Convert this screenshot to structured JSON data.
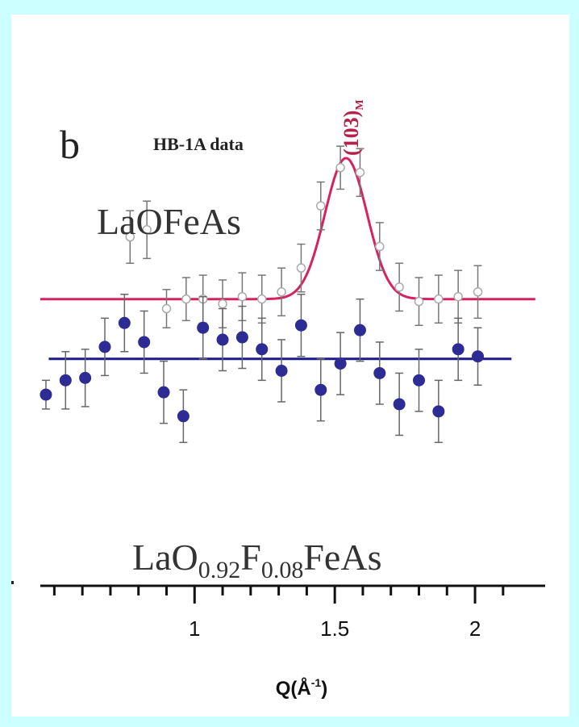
{
  "chart_data": {
    "type": "scatter",
    "panel_label": "b",
    "dataset_label": "HB-1A data",
    "peak_label": "(103)",
    "peak_label_subscript": "M",
    "xlabel": "Q(Å",
    "xlabel_sup": "-1",
    "xlabel_close": ")",
    "xlim": [
      0.45,
      2.25
    ],
    "x_ticks": [
      1,
      1.5,
      2
    ],
    "x_tick_labels": [
      "1",
      "1.5",
      "2"
    ],
    "ylim": [
      -5,
      13
    ],
    "grid": false,
    "series": [
      {
        "name": "LaOFeAs",
        "marker": "open-circle",
        "color": "#ffffff",
        "fit": {
          "type": "gaussian",
          "baseline": 7.0,
          "amplitude": 5.9,
          "center": 1.54,
          "sigma": 0.075,
          "color": "#d6235e"
        },
        "points": [
          {
            "x": 0.77,
            "y": 9.6,
            "err": 1.1
          },
          {
            "x": 0.83,
            "y": 9.9,
            "err": 1.2
          },
          {
            "x": 0.9,
            "y": 6.6,
            "err": 0.8
          },
          {
            "x": 0.97,
            "y": 7.0,
            "err": 0.9
          },
          {
            "x": 1.03,
            "y": 7.0,
            "err": 1.0
          },
          {
            "x": 1.1,
            "y": 6.8,
            "err": 1.0
          },
          {
            "x": 1.17,
            "y": 7.1,
            "err": 1.0
          },
          {
            "x": 1.24,
            "y": 7.0,
            "err": 1.0
          },
          {
            "x": 1.31,
            "y": 7.3,
            "err": 1.0
          },
          {
            "x": 1.38,
            "y": 8.3,
            "err": 1.0
          },
          {
            "x": 1.45,
            "y": 10.9,
            "err": 1.0
          },
          {
            "x": 1.52,
            "y": 12.5,
            "err": 0.9
          },
          {
            "x": 1.59,
            "y": 12.3,
            "err": 1.0
          },
          {
            "x": 1.66,
            "y": 9.2,
            "err": 1.0
          },
          {
            "x": 1.73,
            "y": 7.5,
            "err": 1.0
          },
          {
            "x": 1.8,
            "y": 6.9,
            "err": 1.0
          },
          {
            "x": 1.87,
            "y": 7.0,
            "err": 1.0
          },
          {
            "x": 1.94,
            "y": 7.1,
            "err": 1.1
          },
          {
            "x": 2.01,
            "y": 7.3,
            "err": 1.1
          }
        ]
      },
      {
        "name": "LaO",
        "name_sub1": "0.92",
        "name_mid": "F",
        "name_sub2": "0.08",
        "name_end": "FeAs",
        "marker": "filled-circle",
        "color": "#2c2c94",
        "fit": {
          "type": "constant",
          "value": 4.5,
          "color": "#1a1a8c"
        },
        "points": [
          {
            "x": 0.47,
            "y": 3.0,
            "err": 0.6
          },
          {
            "x": 0.54,
            "y": 3.6,
            "err": 1.2
          },
          {
            "x": 0.61,
            "y": 3.7,
            "err": 1.2
          },
          {
            "x": 0.68,
            "y": 5.0,
            "err": 1.2
          },
          {
            "x": 0.75,
            "y": 6.0,
            "err": 1.2
          },
          {
            "x": 0.82,
            "y": 5.2,
            "err": 1.3
          },
          {
            "x": 0.89,
            "y": 3.1,
            "err": 1.3
          },
          {
            "x": 0.96,
            "y": 2.1,
            "err": 1.1
          },
          {
            "x": 1.03,
            "y": 5.8,
            "err": 1.3
          },
          {
            "x": 1.1,
            "y": 5.3,
            "err": 1.3
          },
          {
            "x": 1.17,
            "y": 5.4,
            "err": 1.3
          },
          {
            "x": 1.24,
            "y": 4.9,
            "err": 1.3
          },
          {
            "x": 1.31,
            "y": 4.0,
            "err": 1.3
          },
          {
            "x": 1.38,
            "y": 5.9,
            "err": 1.3
          },
          {
            "x": 1.45,
            "y": 3.2,
            "err": 1.3
          },
          {
            "x": 1.52,
            "y": 4.3,
            "err": 1.3
          },
          {
            "x": 1.59,
            "y": 5.7,
            "err": 1.3
          },
          {
            "x": 1.66,
            "y": 3.9,
            "err": 1.3
          },
          {
            "x": 1.73,
            "y": 2.6,
            "err": 1.3
          },
          {
            "x": 1.8,
            "y": 3.6,
            "err": 1.3
          },
          {
            "x": 1.87,
            "y": 2.3,
            "err": 1.3
          },
          {
            "x": 1.94,
            "y": 4.9,
            "err": 1.3
          },
          {
            "x": 2.01,
            "y": 4.6,
            "err": 1.2
          }
        ]
      }
    ]
  }
}
